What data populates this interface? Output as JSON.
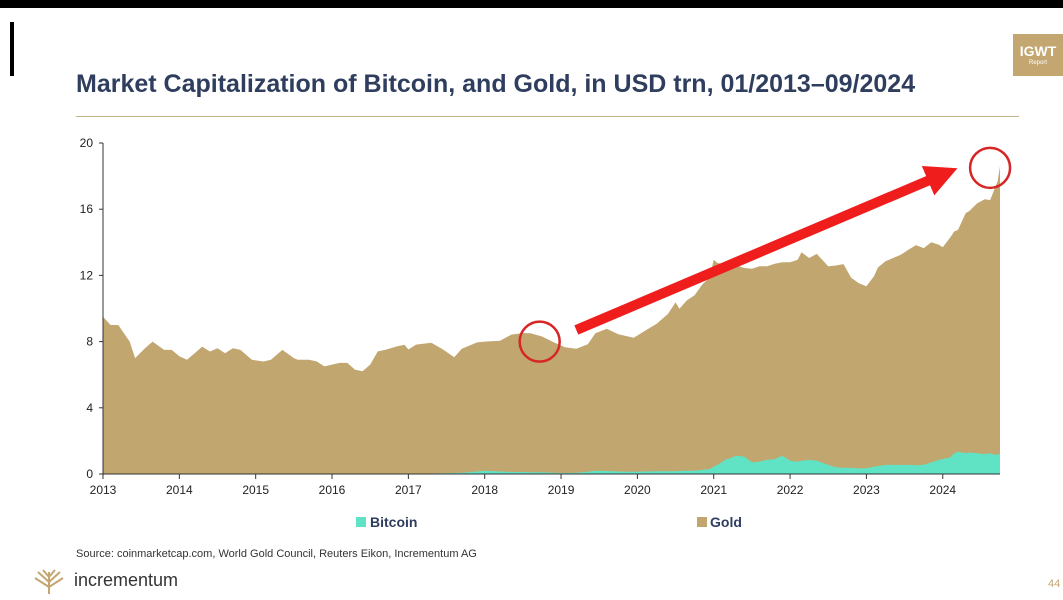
{
  "header": {
    "title": "Market Capitalization of Bitcoin, and Gold, in USD trn, 01/2013–09/2024",
    "badge_line1": "IGWT",
    "badge_line2": "Report"
  },
  "footer": {
    "source": "Source: coinmarketcap.com, World Gold Council, Reuters Eikon, Incrementum AG",
    "brand": "incrementum",
    "page_number": "44"
  },
  "colors": {
    "gold": "#c2a670",
    "bitcoin": "#5fe3c4",
    "title": "#2f3e5e",
    "arrow": "#f01d1d"
  },
  "chart_data": {
    "type": "area",
    "stacked": true,
    "title": "Market Capitalization of Bitcoin, and Gold, in USD trn, 01/2013–09/2024",
    "xlim": [
      2013.0,
      2024.75
    ],
    "ylim": [
      0,
      20
    ],
    "yticks": [
      "0",
      "4",
      "8",
      "12",
      "16",
      "20"
    ],
    "xticks": [
      "2013",
      "2014",
      "2015",
      "2016",
      "2017",
      "2018",
      "2019",
      "2020",
      "2021",
      "2022",
      "2023",
      "2024"
    ],
    "grid": false,
    "legend_position": "bottom",
    "x": [
      2013.0,
      2013.1,
      2013.2,
      2013.35,
      2013.42,
      2013.55,
      2013.65,
      2013.8,
      2013.9,
      2014.0,
      2014.1,
      2014.2,
      2014.3,
      2014.4,
      2014.5,
      2014.6,
      2014.7,
      2014.8,
      2014.95,
      2015.1,
      2015.2,
      2015.35,
      2015.5,
      2015.55,
      2015.7,
      2015.8,
      2015.9,
      2016.0,
      2016.1,
      2016.2,
      2016.3,
      2016.4,
      2016.5,
      2016.6,
      2016.7,
      2016.85,
      2016.95,
      2017.0,
      2017.1,
      2017.3,
      2017.45,
      2017.6,
      2017.7,
      2017.9,
      2018.0,
      2018.2,
      2018.35,
      2018.5,
      2018.6,
      2018.75,
      2018.9,
      2019.05,
      2019.2,
      2019.35,
      2019.45,
      2019.6,
      2019.75,
      2019.95,
      2020.1,
      2020.25,
      2020.4,
      2020.5,
      2020.55,
      2020.65,
      2020.75,
      2020.85,
      2020.95,
      2021.0,
      2021.05,
      2021.15,
      2021.3,
      2021.4,
      2021.5,
      2021.6,
      2021.7,
      2021.8,
      2021.9,
      2022.0,
      2022.1,
      2022.15,
      2022.25,
      2022.35,
      2022.5,
      2022.6,
      2022.7,
      2022.8,
      2022.9,
      2023.0,
      2023.1,
      2023.15,
      2023.25,
      2023.35,
      2023.45,
      2023.55,
      2023.65,
      2023.75,
      2023.85,
      2023.95,
      2024.0,
      2024.1,
      2024.15,
      2024.2,
      2024.3,
      2024.35,
      2024.45,
      2024.55,
      2024.62,
      2024.68,
      2024.72,
      2024.75
    ],
    "series": [
      {
        "name": "Bitcoin",
        "values": [
          0.0,
          0.0,
          0.0,
          0.0,
          0.0,
          0.0,
          0.0,
          0.0,
          0.0,
          0.01,
          0.0,
          0.0,
          0.0,
          0.0,
          0.0,
          0.0,
          0.0,
          0.0,
          0.0,
          0.0,
          0.0,
          0.0,
          0.0,
          0.0,
          0.0,
          0.0,
          0.0,
          0.01,
          0.01,
          0.01,
          0.01,
          0.01,
          0.01,
          0.01,
          0.01,
          0.01,
          0.01,
          0.02,
          0.02,
          0.03,
          0.04,
          0.06,
          0.07,
          0.15,
          0.2,
          0.15,
          0.12,
          0.12,
          0.11,
          0.11,
          0.07,
          0.06,
          0.07,
          0.14,
          0.2,
          0.18,
          0.15,
          0.13,
          0.15,
          0.17,
          0.17,
          0.17,
          0.18,
          0.2,
          0.2,
          0.25,
          0.3,
          0.45,
          0.55,
          0.85,
          1.1,
          1.05,
          0.7,
          0.75,
          0.85,
          0.9,
          1.1,
          0.8,
          0.75,
          0.8,
          0.85,
          0.8,
          0.55,
          0.4,
          0.38,
          0.37,
          0.33,
          0.35,
          0.45,
          0.48,
          0.55,
          0.55,
          0.55,
          0.55,
          0.53,
          0.55,
          0.7,
          0.85,
          0.9,
          1.0,
          1.25,
          1.35,
          1.25,
          1.3,
          1.25,
          1.2,
          1.25,
          1.15,
          1.2,
          1.2
        ]
      },
      {
        "name": "Gold",
        "values": [
          9.5,
          9.0,
          9.0,
          8.0,
          7.0,
          7.6,
          8.0,
          7.5,
          7.5,
          7.1,
          6.9,
          7.3,
          7.7,
          7.4,
          7.6,
          7.3,
          7.6,
          7.5,
          6.9,
          6.8,
          6.9,
          7.5,
          7.0,
          6.9,
          6.9,
          6.8,
          6.5,
          6.6,
          6.7,
          6.7,
          6.3,
          6.2,
          6.6,
          7.4,
          7.5,
          7.7,
          7.8,
          7.5,
          7.8,
          7.9,
          7.5,
          7.0,
          7.5,
          7.8,
          7.8,
          7.9,
          8.3,
          8.4,
          8.4,
          8.2,
          7.9,
          7.6,
          7.5,
          7.7,
          8.3,
          8.6,
          8.3,
          8.1,
          8.5,
          8.9,
          9.5,
          10.2,
          9.8,
          10.3,
          10.6,
          11.2,
          11.6,
          12.5,
          12.2,
          11.8,
          11.5,
          11.4,
          11.7,
          11.8,
          11.7,
          11.8,
          11.7,
          12.0,
          12.2,
          12.6,
          12.2,
          12.5,
          12.0,
          12.2,
          12.3,
          11.5,
          11.2,
          11.0,
          11.5,
          12.0,
          12.3,
          12.5,
          12.7,
          13.0,
          13.3,
          13.1,
          13.3,
          13.0,
          12.8,
          13.3,
          13.4,
          13.4,
          14.5,
          14.6,
          15.1,
          15.4,
          15.3,
          16.1,
          16.5,
          17.4
        ]
      }
    ],
    "annotations": [
      {
        "type": "circle",
        "x": 2018.72,
        "y": 8.0
      },
      {
        "type": "circle",
        "x": 2024.62,
        "y": 18.5
      },
      {
        "type": "arrow",
        "from": [
          2019.2,
          8.7
        ],
        "to": [
          2024.0,
          18.1
        ]
      }
    ]
  },
  "legend": {
    "bitcoin_label": "Bitcoin",
    "gold_label": "Gold"
  }
}
